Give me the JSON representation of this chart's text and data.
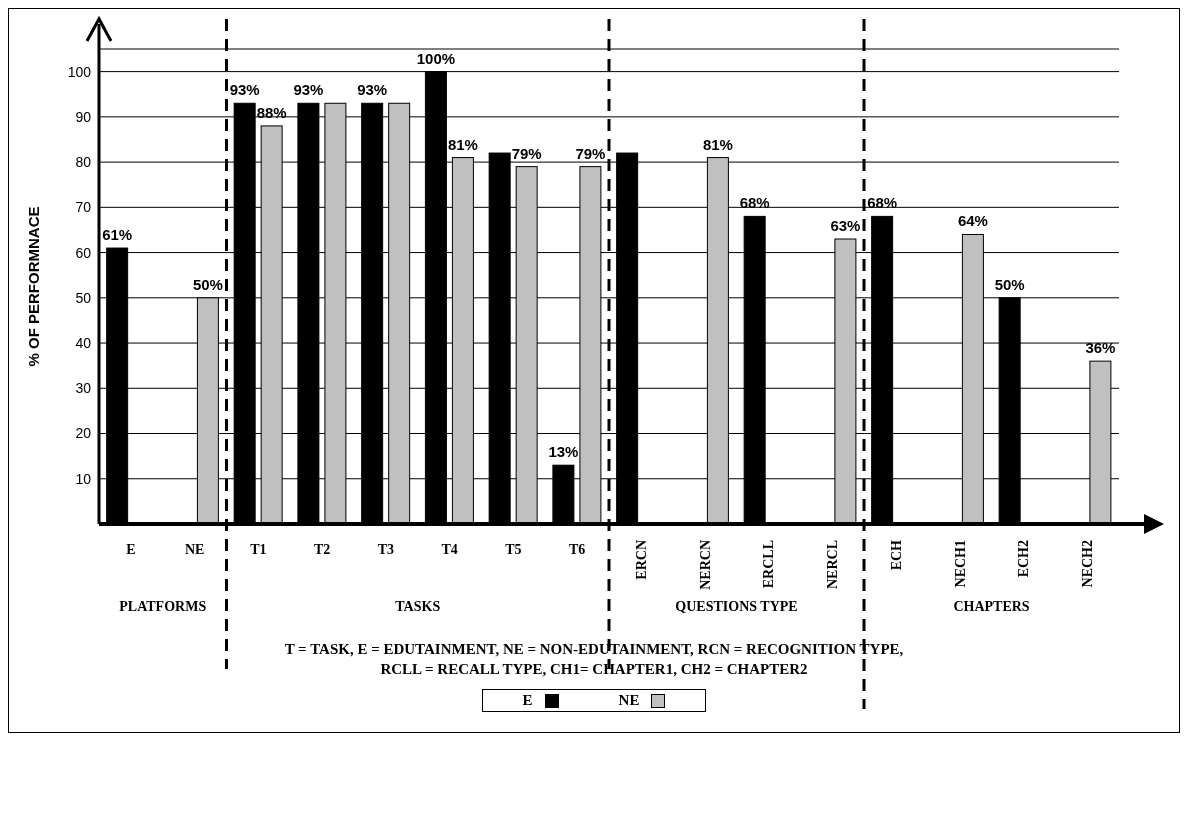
{
  "chart_data": {
    "type": "bar",
    "ylabel": "% OF PERFORMNACE",
    "categories": [
      "E",
      "NE",
      "T1",
      "T2",
      "T3",
      "T4",
      "T5",
      "T6",
      "ERCN",
      "NERCN",
      "ERCLL",
      "NERCL",
      "ECH",
      "NECH1",
      "ECH2",
      "NECH2"
    ],
    "series": [
      {
        "name": "E",
        "color": "#000000",
        "values": [
          61,
          null,
          93,
          93,
          93,
          100,
          82,
          13,
          82,
          null,
          68,
          null,
          68,
          null,
          50,
          null
        ],
        "value_labels": [
          "61%",
          null,
          "93%",
          "93%",
          "93%",
          "100%",
          null,
          "13%",
          null,
          null,
          "68%",
          null,
          "68%",
          null,
          "50%",
          null
        ]
      },
      {
        "name": "NE",
        "color": "#c0c0c0",
        "values": [
          null,
          50,
          88,
          93,
          93,
          81,
          79,
          79,
          null,
          81,
          null,
          63,
          null,
          64,
          null,
          36
        ],
        "value_labels": [
          null,
          "50%",
          "88%",
          null,
          null,
          "81%",
          "79%",
          "79%",
          null,
          "81%",
          null,
          "63%",
          null,
          "64%",
          null,
          "36%"
        ]
      }
    ],
    "ylim": [
      0,
      105
    ],
    "yticks": [
      10,
      20,
      30,
      40,
      50,
      60,
      70,
      80,
      90,
      100
    ],
    "grid": "y",
    "legend": "bottom",
    "annotations": [
      "PLATFORMS",
      "TASKS",
      "QUESTIONS TYPE",
      "CHAPTERS",
      "T = TASK, E = EDUTAINMENT, NE = NON-EDUTAINMENT, RCN = RECOGNITION TYPE,",
      "RCLL = RECALL TYPE, CH1= CHAPTER1, CH2 = CHAPTER2"
    ]
  }
}
